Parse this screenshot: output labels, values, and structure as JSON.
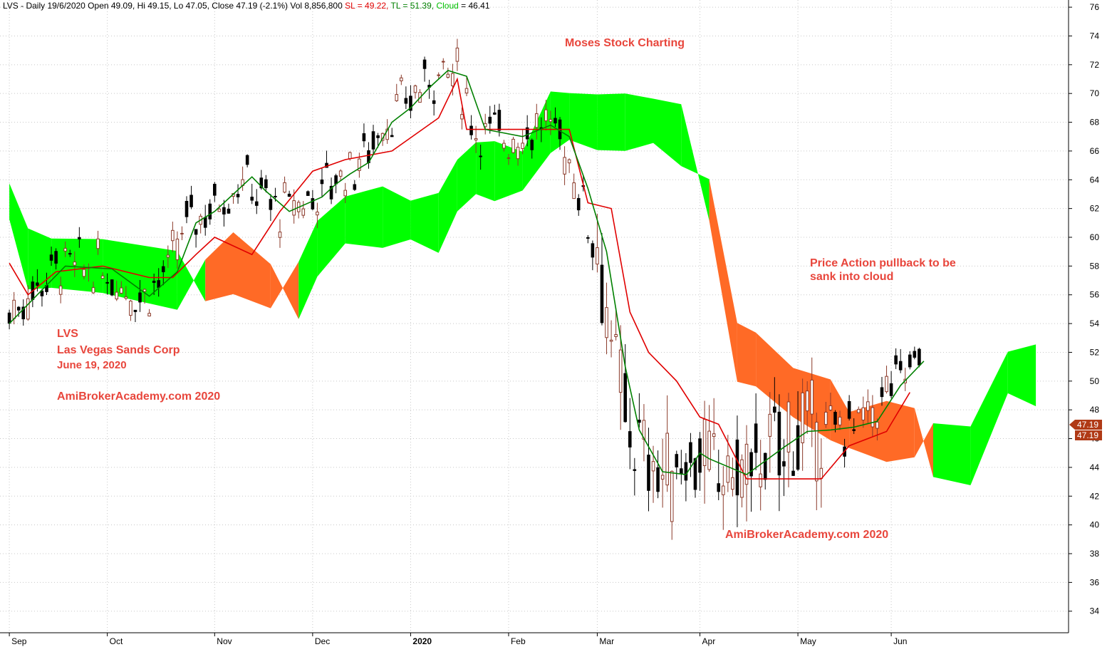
{
  "header": {
    "symbol_line": "LVS - Daily 19/6/2020 Open 49.09, Hi 49.15, Lo 47.05, Close 47.19 (-2.1%) Vol 8,856,800",
    "sl_label": "SL = 49.22,",
    "tl_label": "TL = 51.39,",
    "cloud_label": "Cloud",
    "cloud_value": " = 46.41"
  },
  "annotations": {
    "brand": "Moses Stock Charting",
    "ticker": "LVS",
    "company": "Las Vegas Sands Corp",
    "date": "June 19, 2020",
    "watermark_left": "AmiBrokerAcademy.com 2020",
    "watermark_right": "AmiBrokerAcademy.com  2020",
    "note_line1": "Price Action pullback to be",
    "note_line2": "sank into cloud"
  },
  "price_tags": {
    "close": "47.19",
    "close2": "47.19"
  },
  "colors": {
    "up_candle": "#8b3a2a",
    "down_candle": "#000000",
    "sl_line": "#e00000",
    "tl_line": "#008000",
    "cloud_bull": "#00ff00",
    "cloud_bear": "#ff6a26",
    "annotation": "#e8463c",
    "tag_bg": "#b03a16"
  },
  "chart_data": {
    "type": "candlestick",
    "y_ticks": [
      "34",
      "36",
      "38",
      "40",
      "42",
      "44",
      "46",
      "48",
      "50",
      "52",
      "54",
      "56",
      "58",
      "60",
      "62",
      "64",
      "66",
      "68",
      "70",
      "72",
      "74",
      "76"
    ],
    "ylim": [
      32.5,
      76.5
    ],
    "x_ticks": [
      {
        "label": "Sep",
        "day": 0
      },
      {
        "label": "Oct",
        "day": 21
      },
      {
        "label": "Nov",
        "day": 44
      },
      {
        "label": "Dec",
        "day": 65
      },
      {
        "label": "2020",
        "day": 86
      },
      {
        "label": "Feb",
        "day": 107
      },
      {
        "label": "Mar",
        "day": 126
      },
      {
        "label": "Apr",
        "day": 148
      },
      {
        "label": "May",
        "day": 169
      },
      {
        "label": "Jun",
        "day": 189
      }
    ],
    "series": [
      {
        "name": "SL",
        "values": [
          [
            0,
            58.2
          ],
          [
            4,
            56.0
          ],
          [
            10,
            57.6
          ],
          [
            20,
            58.0
          ],
          [
            30,
            57.2
          ],
          [
            35,
            57.2
          ],
          [
            40,
            58.8
          ],
          [
            44,
            60.0
          ],
          [
            52,
            58.8
          ],
          [
            58,
            61.8
          ],
          [
            65,
            64.6
          ],
          [
            72,
            65.4
          ],
          [
            82,
            66.0
          ],
          [
            92,
            68.3
          ],
          [
            96,
            71.0
          ],
          [
            98,
            67.5
          ],
          [
            118,
            67.5
          ],
          [
            120,
            67.5
          ],
          [
            124,
            62.4
          ],
          [
            129,
            62.0
          ],
          [
            133,
            54.8
          ],
          [
            137,
            52.0
          ],
          [
            143,
            50.0
          ],
          [
            148,
            47.5
          ],
          [
            152,
            47.0
          ],
          [
            158,
            43.2
          ],
          [
            163,
            43.2
          ],
          [
            170,
            43.2
          ],
          [
            174,
            43.2
          ],
          [
            180,
            45.5
          ],
          [
            188,
            46.5
          ],
          [
            193,
            49.22
          ]
        ]
      },
      {
        "name": "TL",
        "values": [
          [
            0,
            54.0
          ],
          [
            6,
            56.0
          ],
          [
            12,
            58.0
          ],
          [
            22,
            57.8
          ],
          [
            30,
            55.9
          ],
          [
            36,
            57.6
          ],
          [
            40,
            61.0
          ],
          [
            44,
            61.8
          ],
          [
            52,
            64.2
          ],
          [
            55,
            63.2
          ],
          [
            60,
            61.8
          ],
          [
            67,
            62.8
          ],
          [
            70,
            63.7
          ],
          [
            73,
            64.4
          ],
          [
            77,
            65.2
          ],
          [
            82,
            68.0
          ],
          [
            86,
            69.0
          ],
          [
            90,
            70.4
          ],
          [
            94,
            71.6
          ],
          [
            98,
            71.2
          ],
          [
            102,
            67.5
          ],
          [
            110,
            67.0
          ],
          [
            116,
            67.8
          ],
          [
            120,
            67.0
          ],
          [
            124,
            63.4
          ],
          [
            128,
            59.0
          ],
          [
            132,
            51.0
          ],
          [
            135,
            46.6
          ],
          [
            140,
            43.7
          ],
          [
            145,
            43.5
          ],
          [
            148,
            45.0
          ],
          [
            150,
            44.6
          ],
          [
            158,
            43.5
          ],
          [
            166,
            45.4
          ],
          [
            171,
            46.5
          ],
          [
            176,
            46.6
          ],
          [
            181,
            46.8
          ],
          [
            186,
            47.2
          ],
          [
            191,
            49.7
          ],
          [
            196,
            51.39
          ]
        ]
      },
      {
        "name": "Cloud",
        "values": [
          [
            0,
            62.5
          ],
          [
            4,
            58.5
          ],
          [
            9,
            58.2
          ],
          [
            20,
            58.0
          ],
          [
            36,
            57.0
          ],
          [
            42,
            57.0
          ],
          [
            48,
            58.2
          ],
          [
            56,
            56.6
          ],
          [
            62,
            56.3
          ],
          [
            66,
            59.2
          ],
          [
            72,
            61.2
          ],
          [
            80,
            61.4
          ],
          [
            86,
            61.2
          ],
          [
            92,
            61.0
          ],
          [
            96,
            63.6
          ],
          [
            100,
            64.8
          ],
          [
            104,
            64.6
          ],
          [
            110,
            64.6
          ],
          [
            116,
            68.0
          ],
          [
            120,
            68.4
          ],
          [
            126,
            68.0
          ],
          [
            132,
            68.0
          ],
          [
            138,
            68.1
          ],
          [
            144,
            67.1
          ],
          [
            150,
            62.6
          ],
          [
            156,
            52.0
          ],
          [
            160,
            51.5
          ],
          [
            168,
            49.2
          ],
          [
            176,
            48.0
          ],
          [
            180,
            46.6
          ],
          [
            188,
            46.5
          ],
          [
            194,
            46.41
          ],
          [
            198,
            45.2
          ],
          [
            206,
            44.8
          ],
          [
            214,
            50.6
          ],
          [
            220,
            50.4
          ]
        ]
      }
    ]
  }
}
